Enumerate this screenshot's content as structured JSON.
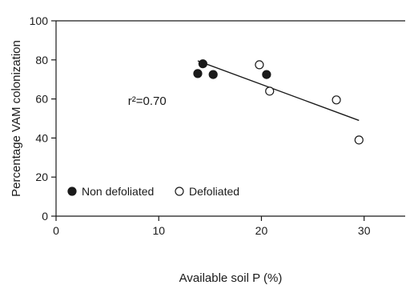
{
  "chart_data": {
    "type": "scatter",
    "title": "",
    "xlabel": "Available soil P (%)",
    "ylabel": "Percentage VAM colonization",
    "xlim": [
      0,
      34
    ],
    "ylim": [
      0,
      100
    ],
    "xticks": [
      0,
      10,
      20,
      30
    ],
    "yticks": [
      0,
      20,
      40,
      60,
      80,
      100
    ],
    "xtick_labels": [
      "0",
      "10",
      "20",
      "30"
    ],
    "ytick_labels": [
      "0",
      "20",
      "40",
      "60",
      "80",
      "100"
    ],
    "series": [
      {
        "name": "Non defoliated",
        "marker": "filled-circle",
        "points": [
          {
            "x": 13.8,
            "y": 73
          },
          {
            "x": 14.3,
            "y": 78
          },
          {
            "x": 15.3,
            "y": 72.5
          },
          {
            "x": 20.5,
            "y": 72.5
          }
        ]
      },
      {
        "name": "Defoliated",
        "marker": "open-circle",
        "points": [
          {
            "x": 19.8,
            "y": 77.5
          },
          {
            "x": 20.8,
            "y": 64
          },
          {
            "x": 27.3,
            "y": 59.5
          },
          {
            "x": 29.5,
            "y": 39
          }
        ]
      }
    ],
    "trendline": {
      "x": [
        13.8,
        29.5
      ],
      "y": [
        79.5,
        49
      ]
    },
    "annotation": "r²=0.70",
    "annotation_position": {
      "x": 7,
      "y": 57
    },
    "legend_position": "bottom-left",
    "grid": false,
    "colors": {
      "marker": "#1a1a1a",
      "axis": "#1a1a1a",
      "background": "#ffffff"
    }
  }
}
